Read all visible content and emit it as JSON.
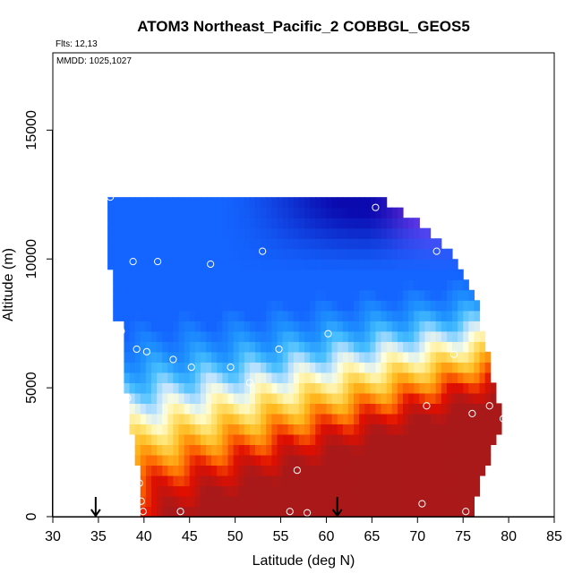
{
  "chart_data": {
    "type": "heatmap",
    "title": "ATOM3 Northeast_Pacific_2 COBBGL_GEOS5",
    "subtitle": "Flts: 12,13",
    "annotation": "MMDD: 1025,1027",
    "xlabel": "Latitude (deg N)",
    "ylabel": "Altitude (m)",
    "xlim": [
      30,
      85
    ],
    "ylim": [
      0,
      18000
    ],
    "x_ticks": [
      "30",
      "35",
      "40",
      "45",
      "50",
      "55",
      "60",
      "65",
      "70",
      "75",
      "80",
      "85"
    ],
    "y_ticks": [
      "0",
      "5000",
      "10000",
      "15000"
    ],
    "grid": false,
    "legend": "none",
    "domain_lat": [
      36.0,
      79.5
    ],
    "domain_alt_top_m": 12400,
    "arrows_at_lat": [
      34.7,
      61.2
    ],
    "flight_points": [
      {
        "lat": 36.3,
        "alt": 12400
      },
      {
        "lat": 38.8,
        "alt": 9900
      },
      {
        "lat": 41.5,
        "alt": 9900
      },
      {
        "lat": 47.3,
        "alt": 9800
      },
      {
        "lat": 53.0,
        "alt": 10300
      },
      {
        "lat": 65.4,
        "alt": 12000
      },
      {
        "lat": 72.1,
        "alt": 10300
      },
      {
        "lat": 37.5,
        "alt": 7200
      },
      {
        "lat": 39.2,
        "alt": 6500
      },
      {
        "lat": 40.3,
        "alt": 6400
      },
      {
        "lat": 43.2,
        "alt": 6100
      },
      {
        "lat": 45.2,
        "alt": 5800
      },
      {
        "lat": 49.5,
        "alt": 5800
      },
      {
        "lat": 51.6,
        "alt": 5200
      },
      {
        "lat": 54.8,
        "alt": 6500
      },
      {
        "lat": 60.2,
        "alt": 7100
      },
      {
        "lat": 38.2,
        "alt": 4600
      },
      {
        "lat": 71.0,
        "alt": 4300
      },
      {
        "lat": 74.0,
        "alt": 6300
      },
      {
        "lat": 76.0,
        "alt": 4000
      },
      {
        "lat": 77.9,
        "alt": 4300
      },
      {
        "lat": 79.4,
        "alt": 3800
      },
      {
        "lat": 56.8,
        "alt": 1800
      },
      {
        "lat": 39.5,
        "alt": 1300
      },
      {
        "lat": 39.7,
        "alt": 600
      },
      {
        "lat": 39.9,
        "alt": 200
      },
      {
        "lat": 44.0,
        "alt": 200
      },
      {
        "lat": 56.0,
        "alt": 200
      },
      {
        "lat": 57.9,
        "alt": 150
      },
      {
        "lat": 70.5,
        "alt": 500
      },
      {
        "lat": 75.3,
        "alt": 200
      }
    ]
  }
}
